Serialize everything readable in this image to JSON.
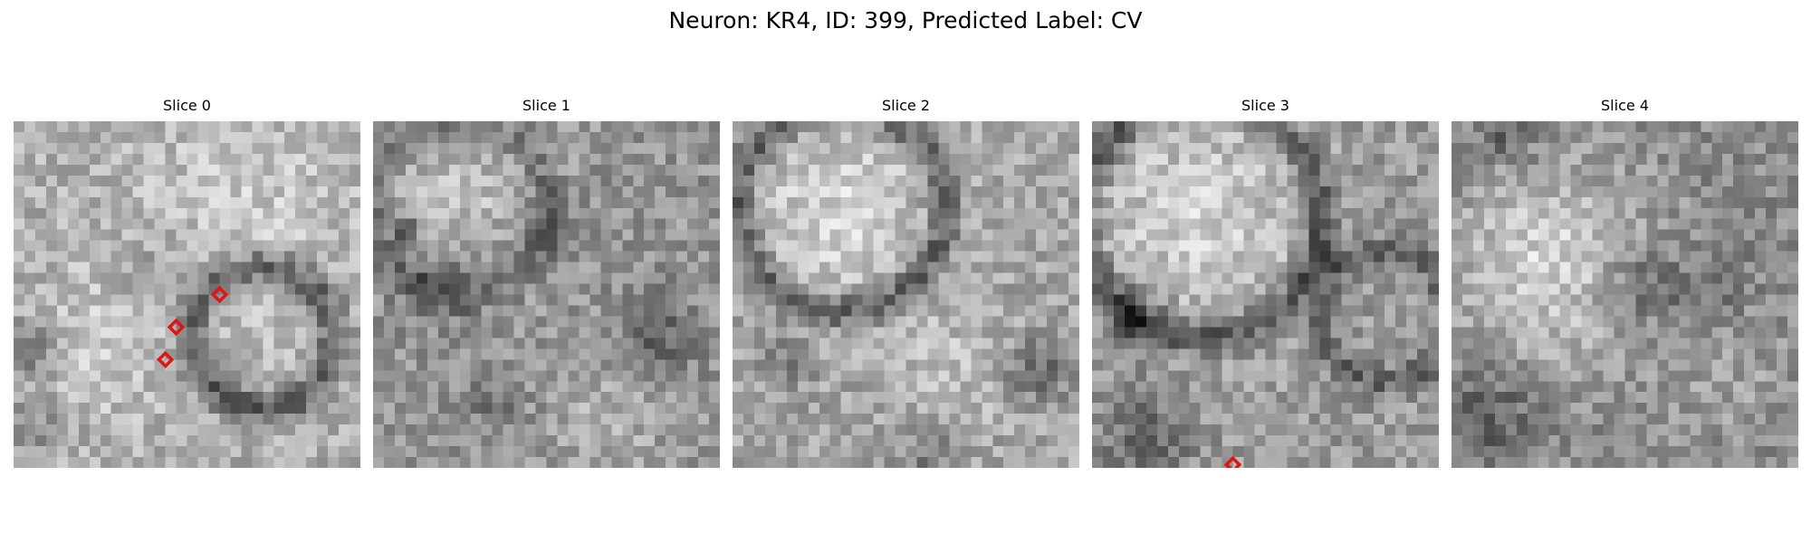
{
  "figure": {
    "title": "Neuron: KR4, ID: 399, Predicted Label: CV"
  },
  "panels": [
    {
      "title": "Slice 0"
    },
    {
      "title": "Slice 1"
    },
    {
      "title": "Slice 2"
    },
    {
      "title": "Slice 3"
    },
    {
      "title": "Slice 4"
    }
  ],
  "colors": {
    "marker": "#e01515",
    "background": "#ffffff"
  }
}
